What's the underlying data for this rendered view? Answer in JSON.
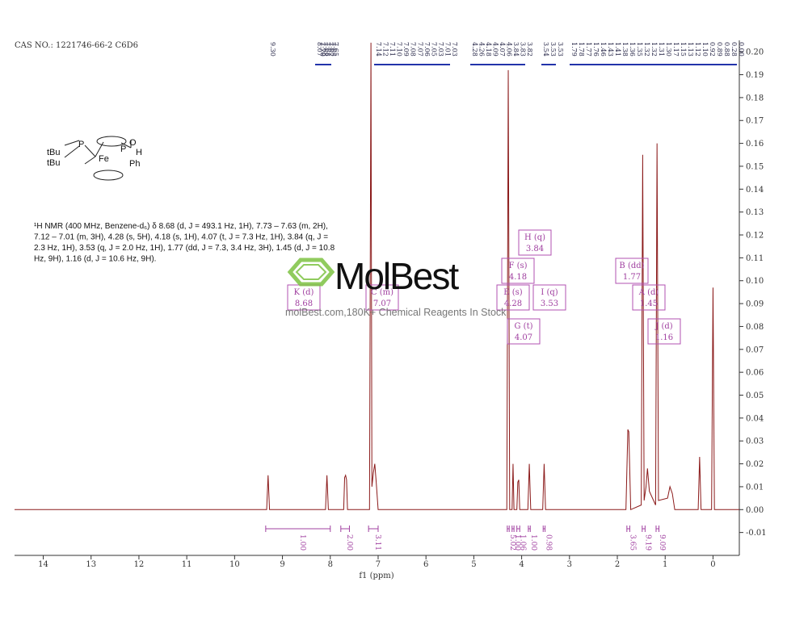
{
  "chart_data": {
    "type": "line",
    "header": "CAS NO.: 1221746-66-2 C6D6",
    "description": [
      "¹H NMR (400 MHz, Benzene-d₆) δ 8.68 (d, J = 493.1 Hz, 1H), 7.73 – 7.63 (m, 2H),",
      "7.12 – 7.01 (m, 3H), 4.28 (s, 5H), 4.18 (s, 1H), 4.07 (t, J = 7.3 Hz, 1H), 3.84 (q, J =",
      "2.3 Hz, 1H), 3.53 (q, J = 2.0 Hz, 1H), 1.77 (dd, J = 7.3, 3.4 Hz, 3H), 1.45 (d, J = 10.8",
      "Hz, 9H), 1.16 (d, J = 10.6 Hz, 9H)."
    ],
    "structure": {
      "labels": [
        "tBu",
        "P",
        "tBu",
        "Fe",
        "P",
        "O",
        "H",
        "Ph"
      ]
    },
    "watermark": {
      "brand": "MolBest",
      "tagline": "molBest.com,180K+ Chemical Reagents In Stock"
    },
    "xlabel": "f1 (ppm)",
    "color": "#8b1a1a",
    "x": [
      14.6,
      9.33,
      9.3,
      9.27,
      8.1,
      8.07,
      8.04,
      7.72,
      7.7,
      7.68,
      7.66,
      7.64,
      7.18,
      7.15,
      7.13,
      7.1,
      7.07,
      7.04,
      7.0,
      4.31,
      4.28,
      4.25,
      4.2,
      4.18,
      4.16,
      4.1,
      4.08,
      4.06,
      4.04,
      3.87,
      3.84,
      3.81,
      3.56,
      3.53,
      3.5,
      1.82,
      1.78,
      1.76,
      1.72,
      1.5,
      1.47,
      1.44,
      1.4,
      1.37,
      1.33,
      1.2,
      1.17,
      1.14,
      0.95,
      0.9,
      0.85,
      0.8,
      0.31,
      0.28,
      0.25,
      0.03,
      0.0,
      -0.03,
      -0.55
    ],
    "values": [
      0,
      0,
      0.015,
      0,
      0,
      0.015,
      0,
      0,
      0.014,
      0.015,
      0.013,
      0,
      0,
      0.204,
      0.01,
      0.016,
      0.02,
      0.012,
      0,
      0,
      0.192,
      0,
      0,
      0.02,
      0,
      0,
      0.012,
      0.013,
      0,
      0,
      0.02,
      0,
      0,
      0.02,
      0,
      0,
      0.035,
      0.034,
      0,
      0.002,
      0.155,
      0.004,
      0.01,
      0.018,
      0.008,
      0.002,
      0.16,
      0.004,
      0.005,
      0.01,
      0.007,
      0,
      0,
      0.023,
      0,
      0,
      0.097,
      0,
      0
    ],
    "xlim": [
      14.6,
      -0.55
    ],
    "xticks": [
      14,
      13,
      12,
      11,
      10,
      9,
      8,
      7,
      6,
      5,
      4,
      3,
      2,
      1,
      0
    ],
    "ylim": [
      -0.02,
      0.205
    ],
    "yticks": [
      {
        "value": 0.2,
        "label": "0.20"
      },
      {
        "value": 0.19,
        "label": "0.19"
      },
      {
        "value": 0.18,
        "label": "0.18"
      },
      {
        "value": 0.17,
        "label": "0.17"
      },
      {
        "value": 0.16,
        "label": "0.16"
      },
      {
        "value": 0.15,
        "label": "0.15"
      },
      {
        "value": 0.14,
        "label": "0.14"
      },
      {
        "value": 0.13,
        "label": "0.13"
      },
      {
        "value": 0.12,
        "label": "0.12"
      },
      {
        "value": 0.11,
        "label": "0.11"
      },
      {
        "value": 0.1,
        "label": "0.10"
      },
      {
        "value": 0.09,
        "label": "0.09"
      },
      {
        "value": 0.08,
        "label": "0.08"
      },
      {
        "value": 0.07,
        "label": "0.07"
      },
      {
        "value": 0.06,
        "label": "0.06"
      },
      {
        "value": 0.05,
        "label": "0.05"
      },
      {
        "value": 0.04,
        "label": "0.04"
      },
      {
        "value": 0.03,
        "label": "0.03"
      },
      {
        "value": 0.02,
        "label": "0.02"
      },
      {
        "value": 0.01,
        "label": "0.01"
      },
      {
        "value": 0,
        "label": "0.00"
      },
      {
        "value": -0.01,
        "label": "-0.01"
      }
    ],
    "peak_labels": [
      [
        "9.30"
      ],
      [
        "8.07",
        "7.70",
        "7.68",
        "7.68",
        "7.67",
        "7.65",
        "7.65"
      ],
      [
        "7.14",
        "7.12",
        "7.11",
        "7.10",
        "7.09",
        "7.08",
        "7.07",
        "7.06",
        "7.05",
        "7.03",
        "7.01",
        "7.03"
      ],
      [
        "4.28",
        "4.26",
        "4.18",
        "4.09",
        "4.07",
        "4.06",
        "3.84",
        "3.83",
        "3.82"
      ],
      [
        "3.54",
        "3.53",
        "3.53"
      ],
      [
        "1.79",
        "1.78",
        "1.77",
        "1.76",
        "1.46",
        "1.43",
        "1.41",
        "1.38",
        "1.36",
        "1.35",
        "1.32",
        "1.32",
        "1.31",
        "1.30",
        "1.17",
        "1.15",
        "1.13",
        "1.12",
        "1.10",
        "0.92",
        "0.89",
        "0.88",
        "0.28",
        "0.00"
      ]
    ],
    "integrals": [
      {
        "range": [
          9.35,
          8.0
        ],
        "label": "1.00"
      },
      {
        "range": [
          7.78,
          7.6
        ],
        "label": "2.00"
      },
      {
        "range": [
          7.2,
          7.0
        ],
        "label": "3.11"
      },
      {
        "range": [
          4.3,
          4.26
        ],
        "label": "5.02"
      },
      {
        "range": [
          4.2,
          4.16
        ],
        "label": "1.00"
      },
      {
        "range": [
          4.1,
          4.04
        ],
        "label": "1.06"
      },
      {
        "range": [
          3.86,
          3.82
        ],
        "label": "1.00"
      },
      {
        "range": [
          3.55,
          3.51
        ],
        "label": "0.98"
      },
      {
        "range": [
          1.8,
          1.74
        ],
        "label": "3.65"
      },
      {
        "range": [
          1.48,
          1.42
        ],
        "label": "9.19"
      },
      {
        "range": [
          1.19,
          1.13
        ],
        "label": "9.09"
      }
    ],
    "multiplets": [
      {
        "label": "K (d)",
        "shift": "8.68"
      },
      {
        "label": "C (m)",
        "shift": "7.07"
      },
      {
        "label": "H (q)",
        "shift": "3.84"
      },
      {
        "label": "F (s)",
        "shift": "4.18"
      },
      {
        "label": "E (s)",
        "shift": "4.28"
      },
      {
        "label": "I (q)",
        "shift": "3.53"
      },
      {
        "label": "G (t)",
        "shift": "4.07"
      },
      {
        "label": "B (dd)",
        "shift": "1.77"
      },
      {
        "label": "A (d)",
        "shift": "1.45"
      },
      {
        "label": "J (d)",
        "shift": "1.16"
      }
    ]
  }
}
